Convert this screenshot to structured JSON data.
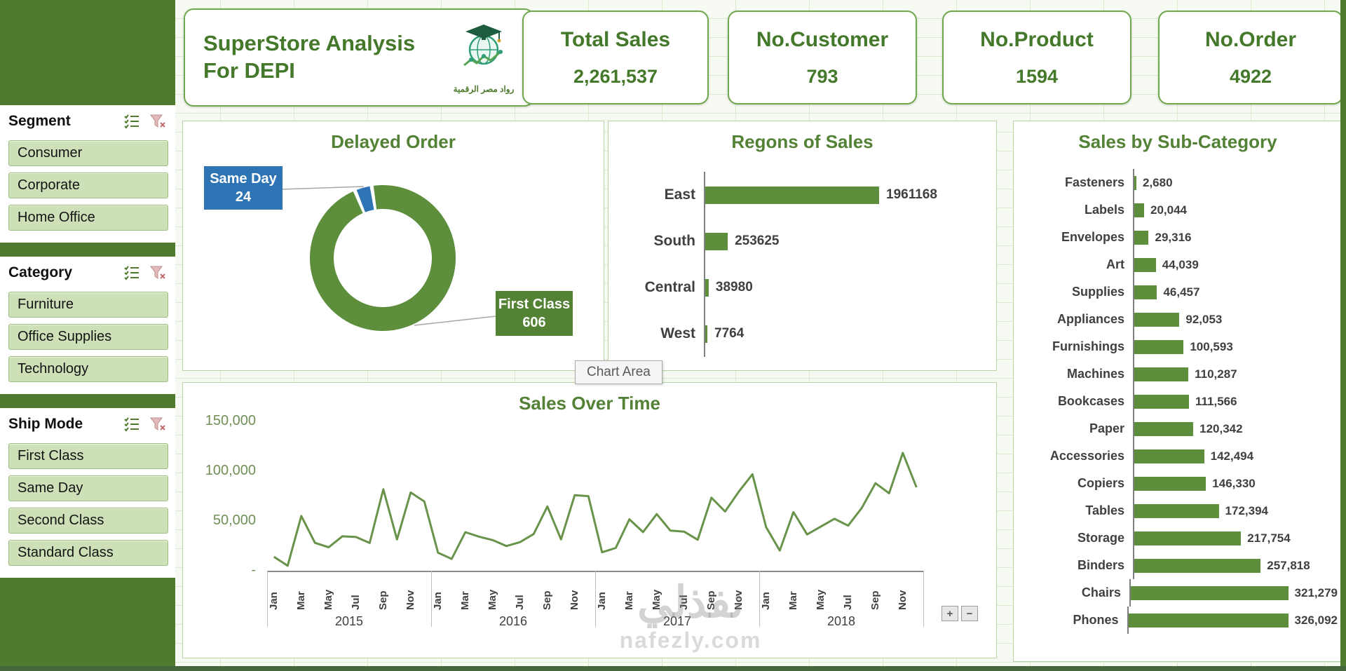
{
  "sidebar": {
    "slicers": [
      {
        "title": "Segment",
        "items": [
          "Consumer",
          "Corporate",
          "Home Office"
        ]
      },
      {
        "title": "Category",
        "items": [
          "Furniture",
          "Office Supplies",
          "Technology"
        ]
      },
      {
        "title": "Ship Mode",
        "items": [
          "First Class",
          "Same Day",
          "Second Class",
          "Standard Class"
        ]
      }
    ]
  },
  "header": {
    "title_line1": "SuperStore Analysis",
    "title_line2": "For DEPI",
    "logo_caption": "رواد مصر الرقمية",
    "kpis": [
      {
        "label": "Total Sales",
        "value": "2,261,537"
      },
      {
        "label": "No.Customer",
        "value": "793"
      },
      {
        "label": "No.Product",
        "value": "1594"
      },
      {
        "label": "No.Order",
        "value": "4922"
      }
    ]
  },
  "misc": {
    "tooltip": "Chart Area",
    "zoom_in": "+",
    "zoom_out": "−"
  },
  "watermark": {
    "line1": "نفذلي",
    "line2": "nafezly.com"
  },
  "colors": {
    "sidebar_green": "#4e7b2e",
    "bar_green": "#5d8e3c",
    "title_green": "#538135",
    "callout_blue": "#2e74b5",
    "callout_green": "#548235"
  },
  "chart_data": [
    {
      "id": "delayed_order",
      "type": "pie",
      "title": "Delayed Order",
      "slices": [
        {
          "label": "Same Day",
          "value": 24,
          "color": "#2e74b5"
        },
        {
          "label": "First Class",
          "value": 606,
          "color": "#5d8e3c"
        }
      ]
    },
    {
      "id": "regions",
      "type": "bar",
      "title": "Regons of Sales",
      "categories": [
        "East",
        "South",
        "Central",
        "West"
      ],
      "values": [
        1961168,
        253625,
        38980,
        7764
      ],
      "value_labels": [
        "1961168",
        "253625",
        "38980",
        "7764"
      ]
    },
    {
      "id": "subcategory",
      "type": "bar",
      "title": "Sales by Sub-Category",
      "categories": [
        "Fasteners",
        "Labels",
        "Envelopes",
        "Art",
        "Supplies",
        "Appliances",
        "Furnishings",
        "Machines",
        "Bookcases",
        "Paper",
        "Accessories",
        "Copiers",
        "Tables",
        "Storage",
        "Binders",
        "Chairs",
        "Phones"
      ],
      "values": [
        2680,
        20044,
        29316,
        44039,
        46457,
        92053,
        100593,
        110287,
        111566,
        120342,
        142494,
        146330,
        172394,
        217754,
        257818,
        321279,
        326092
      ],
      "value_labels": [
        "2,680",
        "20,044",
        "29,316",
        "44,039",
        "46,457",
        "92,053",
        "100,593",
        "110,287",
        "111,566",
        "120,342",
        "142,494",
        "146,330",
        "172,394",
        "217,754",
        "257,818",
        "321,279",
        "326,092"
      ]
    },
    {
      "id": "sales_over_time",
      "type": "line",
      "title": "Sales Over Time",
      "years": [
        "2015",
        "2016",
        "2017",
        "2018"
      ],
      "month_ticks": [
        "Jan",
        "Mar",
        "May",
        "Jul",
        "Sep",
        "Nov"
      ],
      "y_ticks": [
        "150,000",
        "100,000",
        "50,000",
        "-"
      ],
      "ylim": [
        0,
        150000
      ],
      "values": [
        14000,
        5000,
        55000,
        28000,
        23500,
        34600,
        33900,
        27900,
        81800,
        31400,
        78600,
        69500,
        18100,
        11900,
        38700,
        34200,
        30800,
        24800,
        28700,
        36900,
        64600,
        31500,
        75900,
        74900,
        18500,
        22900,
        51700,
        38800,
        56900,
        40300,
        39300,
        31100,
        73400,
        59500,
        79400,
        96900,
        43900,
        20300,
        58900,
        36500,
        44300,
        52200,
        45300,
        63100,
        87900,
        77800,
        118400,
        83800
      ]
    }
  ]
}
